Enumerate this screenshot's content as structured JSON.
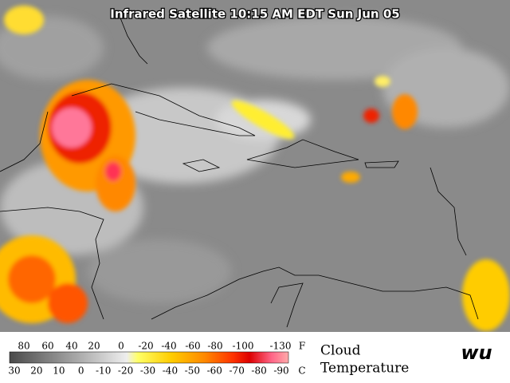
{
  "header": {
    "title": "Infrared Satellite 10:15 AM EDT Sun Jun 05"
  },
  "legend": {
    "fahrenheit": {
      "labels": [
        80,
        60,
        40,
        20,
        0,
        -20,
        -40,
        -60,
        -80,
        -100,
        -130
      ],
      "unit": "F"
    },
    "celsius": {
      "labels": [
        30,
        20,
        10,
        0,
        -10,
        -20,
        -30,
        -40,
        -50,
        -60,
        -70,
        -80,
        -90
      ],
      "unit": "C"
    },
    "title": [
      "Cloud",
      "Temperature"
    ]
  },
  "logo": "wu"
}
